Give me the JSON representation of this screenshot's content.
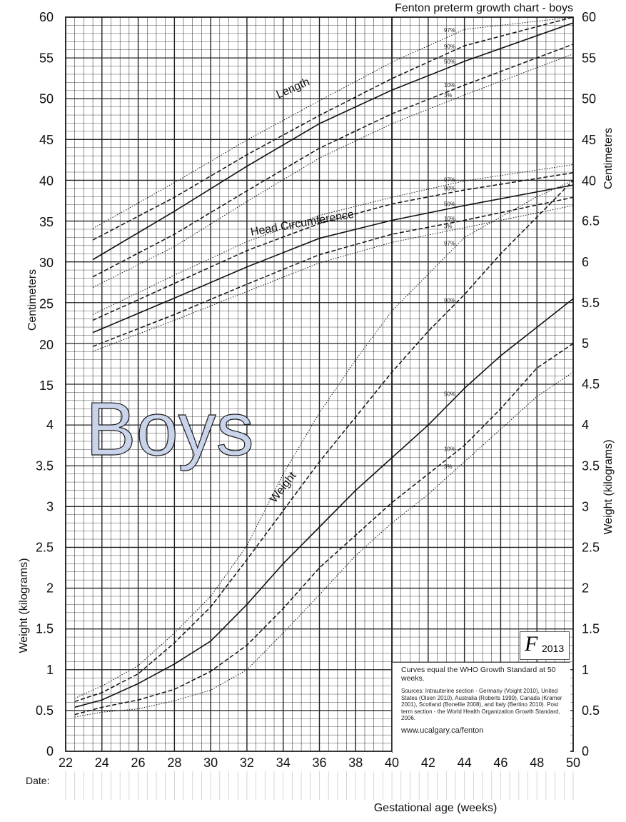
{
  "chart_data": {
    "type": "line",
    "title": "Fenton preterm growth chart - boys",
    "watermark": "Boys",
    "xlabel": "Gestational age (weeks)",
    "x_ticks": [
      "22",
      "24",
      "26",
      "28",
      "30",
      "32",
      "34",
      "36",
      "38",
      "40",
      "42",
      "44",
      "46",
      "48",
      "50"
    ],
    "xlim": [
      22,
      50
    ],
    "date_label": "Date:",
    "left_axis": {
      "upper_label": "Centimeters",
      "lower_label": "Weight (kilograms)",
      "cm_ticks": [
        "60",
        "55",
        "50",
        "45",
        "40",
        "35",
        "30",
        "25",
        "20",
        "15"
      ],
      "kg_ticks": [
        "4",
        "3.5",
        "3",
        "2.5",
        "2",
        "1.5",
        "1",
        "0.5",
        "0"
      ]
    },
    "right_axis": {
      "upper_label": "Centimeters",
      "lower_label": "Weight (kilograms)",
      "cm_ticks": [
        "60",
        "55",
        "50",
        "45",
        "40"
      ],
      "kg_ticks": [
        "6.5",
        "6",
        "5.5",
        "5",
        "4.5",
        "4",
        "3.5",
        "3",
        "2.5",
        "2",
        "1.5",
        "1",
        "0.5",
        "0"
      ]
    },
    "series": [
      {
        "name": "Length",
        "unit": "cm",
        "percentiles": [
          {
            "p": "97",
            "x": [
              23.5,
              28,
              32,
              36,
              40,
              44,
              50
            ],
            "y": [
              34.2,
              39.8,
              45.0,
              49.8,
              54.5,
              58.5,
              63.0
            ]
          },
          {
            "p": "90",
            "x": [
              23.5,
              28,
              32,
              36,
              40,
              44,
              50
            ],
            "y": [
              32.8,
              38.0,
              43.2,
              48.0,
              52.5,
              56.5,
              61.0
            ]
          },
          {
            "p": "50",
            "x": [
              23.5,
              28,
              32,
              36,
              40,
              44,
              50
            ],
            "y": [
              30.4,
              36.3,
              41.8,
              47.0,
              51.1,
              54.6,
              59.3
            ]
          },
          {
            "p": "10",
            "x": [
              23.5,
              28,
              32,
              36,
              40,
              44,
              50
            ],
            "y": [
              28.3,
              33.5,
              38.8,
              44.0,
              48.2,
              51.7,
              56.7
            ]
          },
          {
            "p": "3",
            "x": [
              23.5,
              28,
              32,
              36,
              40,
              44,
              50
            ],
            "y": [
              27.0,
              32.0,
              37.5,
              42.8,
              47.0,
              50.5,
              55.5
            ]
          }
        ]
      },
      {
        "name": "Head Circumference",
        "unit": "cm",
        "percentiles": [
          {
            "p": "97",
            "x": [
              23.5,
              28,
              32,
              36,
              40,
              44,
              50
            ],
            "y": [
              23.7,
              28.5,
              32.6,
              35.8,
              38.0,
              40.0,
              42.0
            ]
          },
          {
            "p": "90",
            "x": [
              23.5,
              28,
              32,
              36,
              40,
              44,
              50
            ],
            "y": [
              23.0,
              27.5,
              31.5,
              34.8,
              37.2,
              38.9,
              41.0
            ]
          },
          {
            "p": "50",
            "x": [
              23.5,
              28,
              32,
              36,
              40,
              44,
              50
            ],
            "y": [
              21.5,
              25.7,
              29.5,
              33.0,
              35.2,
              37.0,
              39.5
            ]
          },
          {
            "p": "10",
            "x": [
              23.5,
              28,
              32,
              36,
              40,
              44,
              50
            ],
            "y": [
              19.8,
              23.7,
              27.4,
              31.0,
              33.5,
              35.2,
              38.0
            ]
          },
          {
            "p": "3",
            "x": [
              23.5,
              28,
              32,
              36,
              40,
              44,
              50
            ],
            "y": [
              19.2,
              23.0,
              26.5,
              30.0,
              32.5,
              34.3,
              37.0
            ]
          }
        ]
      },
      {
        "name": "Weight",
        "unit": "kg",
        "percentiles": [
          {
            "p": "97",
            "x": [
              22.5,
              24,
              26,
              28,
              30,
              32,
              34,
              36,
              38,
              40,
              42,
              44,
              46,
              48,
              50
            ],
            "y": [
              0.65,
              0.8,
              1.05,
              1.45,
              1.9,
              2.52,
              3.4,
              4.15,
              4.8,
              5.4,
              5.85,
              6.3,
              6.55,
              6.8,
              7.0
            ]
          },
          {
            "p": "90",
            "x": [
              22.5,
              24,
              26,
              28,
              30,
              32,
              34,
              36,
              38,
              40,
              42,
              44,
              46,
              48,
              50
            ],
            "y": [
              0.61,
              0.72,
              0.95,
              1.33,
              1.77,
              2.35,
              2.95,
              3.55,
              4.1,
              4.65,
              5.15,
              5.6,
              6.1,
              6.55,
              7.0
            ]
          },
          {
            "p": "50",
            "x": [
              22.5,
              24,
              26,
              28,
              30,
              32,
              34,
              36,
              38,
              40,
              42,
              44,
              46,
              48,
              50
            ],
            "y": [
              0.54,
              0.63,
              0.83,
              1.07,
              1.35,
              1.8,
              2.3,
              2.75,
              3.2,
              3.6,
              4.0,
              4.45,
              4.85,
              5.2,
              5.55
            ]
          },
          {
            "p": "10",
            "x": [
              22.5,
              24,
              26,
              28,
              30,
              32,
              34,
              36,
              38,
              40,
              42,
              44,
              46,
              48,
              50
            ],
            "y": [
              0.45,
              0.54,
              0.63,
              0.76,
              0.98,
              1.3,
              1.75,
              2.25,
              2.65,
              3.05,
              3.4,
              3.75,
              4.2,
              4.7,
              5.0
            ]
          },
          {
            "p": "3",
            "x": [
              22.5,
              24,
              26,
              28,
              30,
              32,
              34,
              36,
              38,
              40,
              42,
              44,
              46,
              48,
              50
            ],
            "y": [
              0.42,
              0.48,
              0.52,
              0.62,
              0.75,
              1.0,
              1.45,
              1.92,
              2.4,
              2.8,
              3.15,
              3.55,
              3.95,
              4.35,
              4.65
            ]
          }
        ]
      }
    ],
    "percentile_labels": [
      "97%",
      "90%",
      "50%",
      "10%",
      "3%"
    ],
    "grid": true
  },
  "notes": {
    "main": "Curves equal the WHO Growth Standard at 50 weeks.",
    "sources": "Sources: Intrauterine section - Germany (Voight 2010), United States (Olsen 2010), Australia (Roberts 1999), Canada (Kramer 2001), Scotland (Bonellie 2008), and Italy (Bertino 2010). Post term section - the World Health Organization Growth Standard, 2006.",
    "url": "www.ucalgary.ca/fenton"
  },
  "logo": {
    "letter": "F",
    "year": "2013"
  }
}
